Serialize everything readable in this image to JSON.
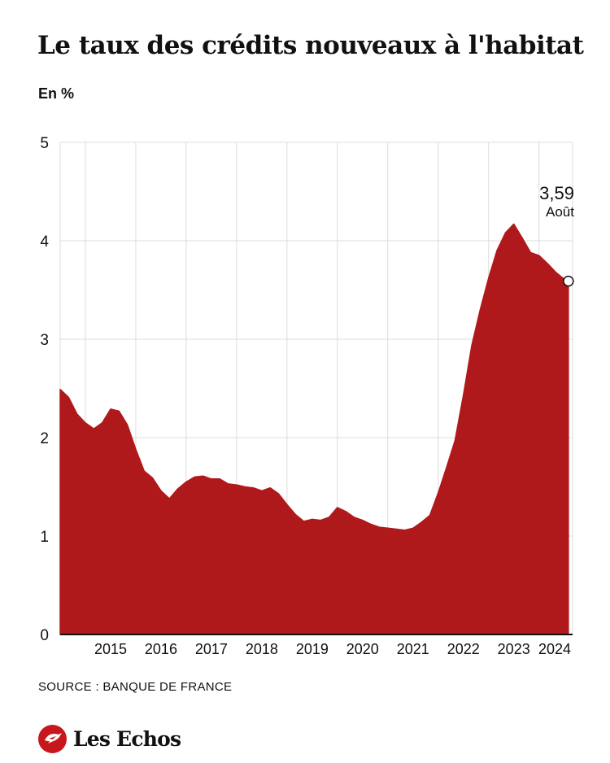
{
  "header": {
    "title": "Le taux des crédits nouveaux à l'habitat",
    "unit": "En %"
  },
  "footer": {
    "source": "SOURCE : BANQUE DE FRANCE",
    "brand": "Les Echos",
    "brand_icon": "les-echos-bird-logo"
  },
  "colors": {
    "area": "#b0191b",
    "grid": "#dcdcdc",
    "axis": "#111111",
    "text": "#111111",
    "brand": "#c8161d"
  },
  "chart_data": {
    "type": "area",
    "title": "Le taux des crédits nouveaux à l'habitat",
    "ylabel": "En %",
    "xlabel": "",
    "ylim": [
      0,
      5
    ],
    "yticks": [
      "0",
      "1",
      "2",
      "3",
      "4",
      "5"
    ],
    "xlim": [
      "2014-07",
      "2024-09"
    ],
    "xticks": [
      "2015",
      "2016",
      "2017",
      "2018",
      "2019",
      "2020",
      "2021",
      "2022",
      "2023",
      "2024"
    ],
    "grid": true,
    "series": [
      {
        "x": [
          "2014-07",
          "2014-09",
          "2014-11",
          "2015-01",
          "2015-03",
          "2015-05",
          "2015-07",
          "2015-09",
          "2015-11",
          "2016-01",
          "2016-03",
          "2016-05",
          "2016-07",
          "2016-09",
          "2016-11",
          "2017-01",
          "2017-03",
          "2017-05",
          "2017-07",
          "2017-09",
          "2017-11",
          "2018-01",
          "2018-03",
          "2018-05",
          "2018-07",
          "2018-09",
          "2018-11",
          "2019-01",
          "2019-03",
          "2019-05",
          "2019-07",
          "2019-09",
          "2019-11",
          "2020-01",
          "2020-03",
          "2020-05",
          "2020-07",
          "2020-09",
          "2020-11",
          "2021-01",
          "2021-03",
          "2021-05",
          "2021-07",
          "2021-09",
          "2021-11",
          "2022-01",
          "2022-03",
          "2022-05",
          "2022-07",
          "2022-09",
          "2022-11",
          "2023-01",
          "2023-03",
          "2023-05",
          "2023-07",
          "2023-09",
          "2023-11",
          "2024-01",
          "2024-03",
          "2024-05",
          "2024-07",
          "2024-08"
        ],
        "values": [
          2.49,
          2.41,
          2.24,
          2.15,
          2.09,
          2.15,
          2.29,
          2.27,
          2.13,
          1.88,
          1.66,
          1.59,
          1.46,
          1.38,
          1.48,
          1.55,
          1.6,
          1.61,
          1.58,
          1.58,
          1.53,
          1.52,
          1.5,
          1.49,
          1.46,
          1.49,
          1.43,
          1.32,
          1.22,
          1.15,
          1.17,
          1.16,
          1.19,
          1.29,
          1.25,
          1.19,
          1.16,
          1.12,
          1.09,
          1.08,
          1.07,
          1.06,
          1.08,
          1.14,
          1.21,
          1.44,
          1.7,
          1.97,
          2.43,
          2.94,
          3.3,
          3.62,
          3.9,
          4.08,
          4.17,
          4.03,
          3.88,
          3.85,
          3.77,
          3.68,
          3.61,
          3.59
        ]
      }
    ],
    "annotations": [
      {
        "value": "3,59",
        "label": "Août",
        "x": "2024-08",
        "y": 3.59
      }
    ]
  }
}
